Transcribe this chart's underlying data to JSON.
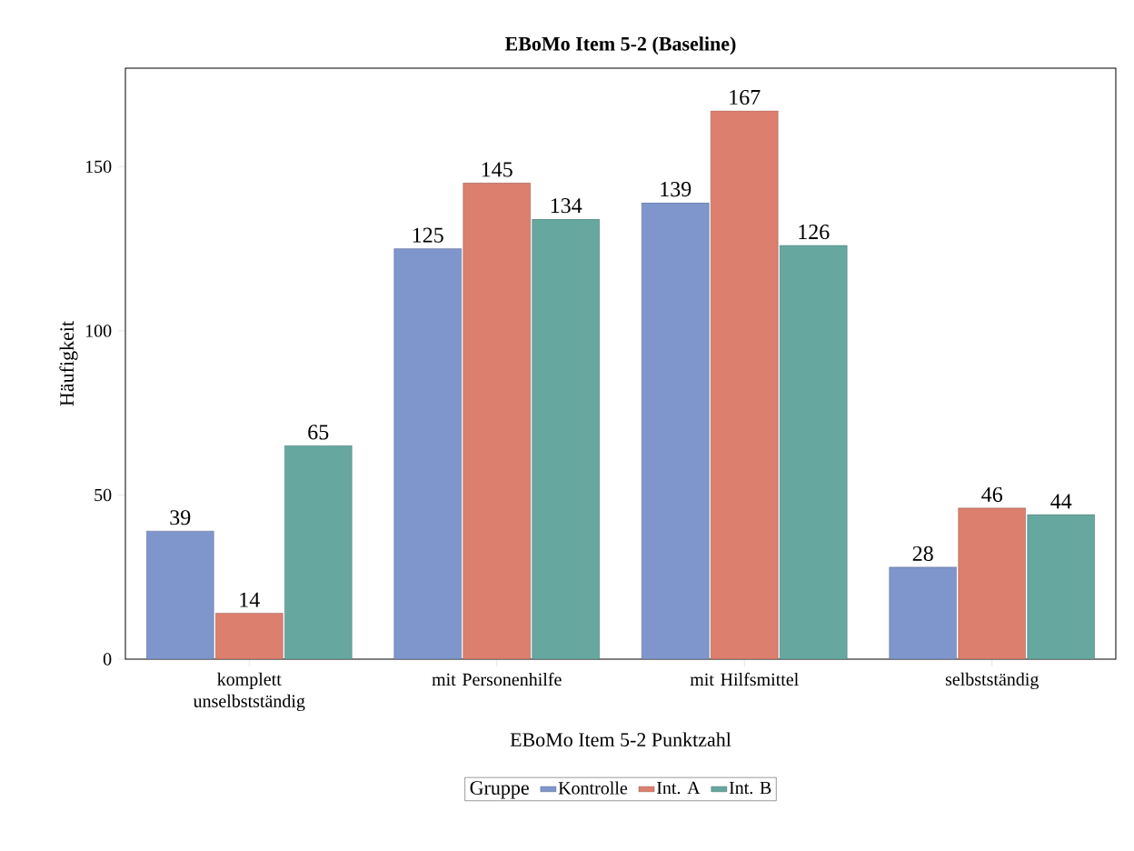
{
  "chart_data": {
    "type": "bar",
    "title": "EBoMo Item 5-2 (Baseline)",
    "xlabel": "EBoMo Item 5-2 Punktzahl",
    "ylabel": "Häufigkeit",
    "legend_title": "Gruppe",
    "categories": [
      "komplett unselbstständig",
      "mit Personenhilfe",
      "mit Hilfsmittel",
      "selbstständig"
    ],
    "series": [
      {
        "name": "Kontrolle",
        "color": "#7f96cc",
        "values": [
          39,
          125,
          139,
          28
        ]
      },
      {
        "name": "Int. A",
        "color": "#dd7f6e",
        "values": [
          14,
          145,
          167,
          46
        ]
      },
      {
        "name": "Int. B",
        "color": "#66a8a0",
        "values": [
          65,
          134,
          126,
          44
        ]
      }
    ],
    "ylim": [
      0,
      180
    ],
    "yticks": [
      0,
      50,
      100,
      150
    ],
    "legend": "bottom",
    "data_labels": true
  }
}
